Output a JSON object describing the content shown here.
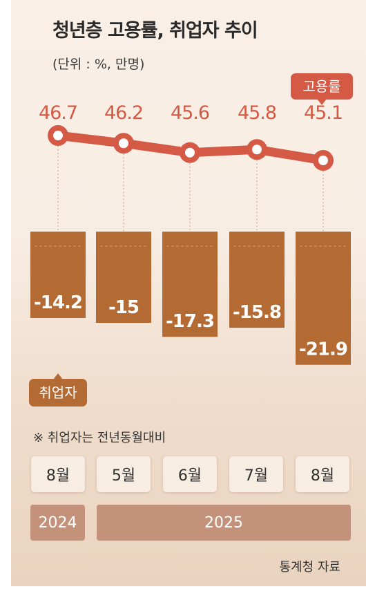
{
  "title": "청년층 고용률, 취업자 추이",
  "unit": "(단위 : %, 만명)",
  "note": "※ 취업자는 전년동월대비",
  "source": "통계청 자료",
  "colors": {
    "line": "#d45a45",
    "bar": "#b46a33",
    "year_band": "#c4927a"
  },
  "chart_data": {
    "type": "bar+line",
    "categories": [
      "8월",
      "5월",
      "6월",
      "7월",
      "8월"
    ],
    "year_groups": [
      {
        "label": "2024",
        "months": 1
      },
      {
        "label": "2025",
        "months": 4
      }
    ],
    "series": [
      {
        "name": "고용률",
        "type": "line",
        "values": [
          46.7,
          46.2,
          45.6,
          45.8,
          45.1
        ]
      },
      {
        "name": "취업자",
        "type": "bar",
        "values": [
          -14.2,
          -15,
          -17.3,
          -15.8,
          -21.9
        ]
      }
    ]
  }
}
